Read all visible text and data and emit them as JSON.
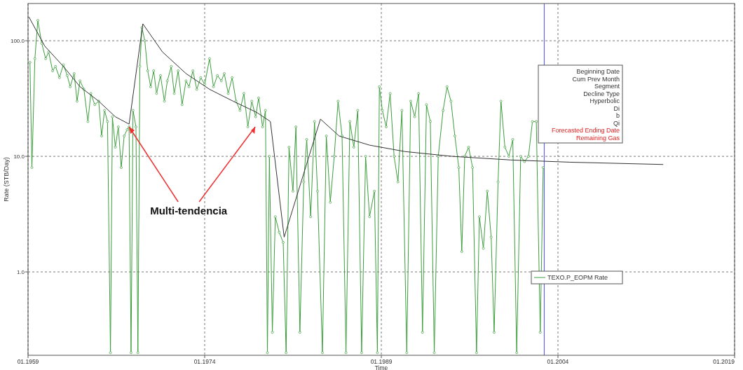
{
  "chart_data": {
    "type": "line",
    "xlabel": "Time",
    "ylabel": "Rate (STB/Day)",
    "log": "y",
    "grid": true,
    "legend": "right",
    "xlim": [
      "1959-01",
      "2019-01"
    ],
    "xticks": [
      {
        "value": "1959-01",
        "label": "01.1959"
      },
      {
        "value": "1974-01",
        "label": "01.1974"
      },
      {
        "value": "1989-01",
        "label": "01.1989"
      },
      {
        "value": "2004-01",
        "label": "01.2004"
      },
      {
        "value": "2019-01",
        "label": "01.2019"
      }
    ],
    "ylim": [
      0.19,
      210
    ],
    "yticks": [
      {
        "value": 1,
        "label": "1.0"
      },
      {
        "value": 10,
        "label": "10.0"
      },
      {
        "value": 100,
        "label": "100.0"
      }
    ],
    "ref_lines": [
      {
        "axis": "x",
        "value": "2002-11",
        "color": "#4a4aff"
      }
    ],
    "annotations": [
      {
        "text": "Multi-tendencia",
        "x": "1967-08",
        "y": 18
      },
      "Beginning Date",
      "Cum Prev Month",
      "Segment",
      "Decline Type",
      "Hyperbolic",
      "Di",
      "b",
      "Qi",
      "Forecasted Ending Date",
      "Remaining Gas"
    ],
    "series": [
      {
        "name": "TEXO.P_EOPM Rate",
        "marker": "circle",
        "color": "#3c9e3c",
        "x": [
          "1959-03",
          "1959-05",
          "1959-08",
          "1959-11",
          "1960-03",
          "1960-07",
          "1960-10",
          "1961-02",
          "1961-05",
          "1961-09",
          "1962-01",
          "1962-05",
          "1962-08",
          "1962-12",
          "1963-03",
          "1963-06",
          "1963-10",
          "1964-02",
          "1964-05",
          "1964-09",
          "1965-01",
          "1965-04",
          "1965-07",
          "1965-10",
          "1966-01",
          "1966-03",
          "1966-06",
          "1966-09",
          "1966-12",
          "1967-03",
          "1967-06",
          "1967-08",
          "1967-10",
          "1967-12",
          "1968-03",
          "1968-05",
          "1968-07",
          "1968-09",
          "1968-12",
          "1969-03",
          "1969-06",
          "1969-09",
          "1969-12",
          "1970-04",
          "1970-08",
          "1970-11",
          "1971-03",
          "1971-06",
          "1971-10",
          "1972-02",
          "1972-06",
          "1972-09",
          "1973-01",
          "1973-05",
          "1973-09",
          "1974-01",
          "1974-06",
          "1974-10",
          "1975-02",
          "1975-06",
          "1975-09",
          "1976-01",
          "1976-05",
          "1976-09",
          "1977-01",
          "1977-05",
          "1977-09",
          "1978-01",
          "1978-05",
          "1978-08",
          "1978-12",
          "1979-03",
          "1979-05",
          "1979-07",
          "1979-10",
          "1980-01",
          "1980-05",
          "1980-09",
          "1980-12",
          "1981-03",
          "1981-07",
          "1981-10",
          "1982-02",
          "1982-06",
          "1982-09",
          "1983-01",
          "1983-05",
          "1983-08",
          "1984-01",
          "1984-05",
          "1984-09",
          "1985-01",
          "1985-05",
          "1985-09",
          "1986-01",
          "1986-05",
          "1986-09",
          "1987-01",
          "1987-05",
          "1987-09",
          "1988-01",
          "1988-06",
          "1988-09",
          "1988-11",
          "1989-02",
          "1989-06",
          "1989-10",
          "1990-02",
          "1990-06",
          "1990-10",
          "1991-03",
          "1991-07",
          "1991-11",
          "1992-03",
          "1992-07",
          "1992-11",
          "1993-03",
          "1993-07",
          "1993-11",
          "1994-04",
          "1994-08",
          "1994-12",
          "1995-04",
          "1995-08",
          "1995-11",
          "1996-02",
          "1996-06",
          "1996-10",
          "1997-02",
          "1997-05",
          "1997-09",
          "1998-01",
          "1998-05",
          "1998-08",
          "1998-12",
          "1999-03",
          "1999-07",
          "1999-11",
          "2000-03",
          "2000-07",
          "2000-11",
          "2001-03",
          "2001-07",
          "2001-11",
          "2002-03",
          "2002-07",
          "2002-10"
        ],
        "values": [
          65,
          8,
          70,
          150,
          95,
          70,
          80,
          55,
          60,
          48,
          62,
          50,
          40,
          52,
          30,
          45,
          38,
          20,
          35,
          28,
          30,
          15,
          25,
          20,
          0.2,
          22,
          12,
          18,
          8,
          15,
          17,
          18,
          0.2,
          25,
          18,
          0.2,
          60,
          130,
          100,
          55,
          40,
          55,
          35,
          50,
          30,
          45,
          60,
          35,
          55,
          28,
          45,
          40,
          55,
          38,
          48,
          42,
          70,
          40,
          50,
          45,
          52,
          35,
          48,
          30,
          25,
          35,
          18,
          30,
          22,
          32,
          18,
          25,
          0.2,
          10,
          0.3,
          3,
          2.2,
          1.8,
          0.2,
          12,
          5,
          18,
          0.3,
          6,
          14,
          3,
          20,
          5,
          0.2,
          15,
          4,
          10,
          30,
          15,
          0.2,
          20,
          12,
          25,
          0.2,
          10,
          3,
          5,
          0.2,
          40,
          25,
          18,
          35,
          10,
          6,
          25,
          0.2,
          30,
          22,
          35,
          0.3,
          28,
          20,
          0.2,
          10,
          25,
          40,
          30,
          15,
          8,
          1.5,
          10,
          12,
          8,
          0.2,
          3,
          1.6,
          5,
          2,
          0.3,
          6,
          30,
          12,
          10,
          14,
          0.2,
          10,
          9,
          10,
          20,
          20,
          0.3,
          8
        ]
      },
      {
        "marker": "none",
        "color": "#333333",
        "x": [
          "1959-02",
          "1960-06",
          "1962-01",
          "1963-06",
          "1965-01",
          "1966-06",
          "1967-08",
          "1968-10",
          "1970-06",
          "1972-06",
          "1974-06",
          "1976-06",
          "1978-06",
          "1979-08",
          "1980-10",
          "1983-11",
          "1985-06",
          "1988-01",
          "1991-01",
          "1995-01",
          "2000-01",
          "2005-01",
          "2012-12"
        ],
        "values": [
          160,
          90,
          60,
          40,
          30,
          22,
          19,
          140,
          80,
          52,
          38,
          30,
          24,
          20,
          2,
          21,
          15,
          12.5,
          11,
          10,
          9.3,
          8.9,
          8.5
        ]
      }
    ]
  }
}
